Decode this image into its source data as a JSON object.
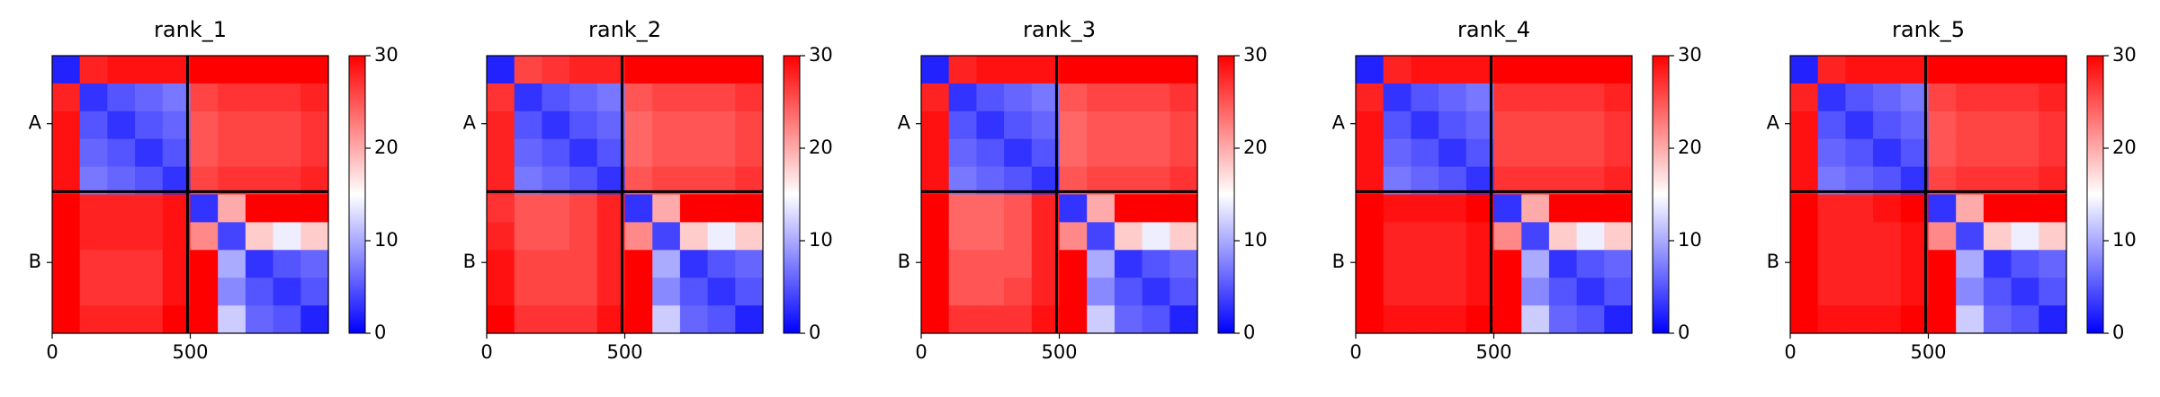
{
  "chart_data": [
    {
      "type": "heatmap",
      "title": "rank_1",
      "xlim": [
        0,
        1000
      ],
      "ylim": [
        1000,
        0
      ],
      "xticks": [
        0,
        500
      ],
      "yticks": [
        {
          "value": 245,
          "label": "A"
        },
        {
          "value": 745,
          "label": "B"
        }
      ],
      "chain_boundary": 490,
      "clim": [
        0,
        30
      ],
      "cticks": [
        0,
        10,
        20,
        30
      ],
      "cmap_colors": [
        "#0000ff",
        "#ffffff",
        "#ff0000"
      ],
      "values": [
        [
          2,
          28,
          29,
          29,
          29,
          30,
          30,
          30,
          30,
          30
        ],
        [
          28,
          3,
          5,
          6,
          7,
          26,
          27,
          27,
          27,
          28
        ],
        [
          29,
          5,
          3,
          5,
          6,
          25,
          26,
          26,
          26,
          27
        ],
        [
          29,
          6,
          5,
          3,
          5,
          25,
          26,
          26,
          26,
          27
        ],
        [
          29,
          7,
          6,
          5,
          3,
          26,
          27,
          27,
          27,
          28
        ],
        [
          30,
          28,
          28,
          28,
          29,
          3,
          20,
          30,
          30,
          30
        ],
        [
          30,
          28,
          28,
          28,
          29,
          22,
          4,
          18,
          14,
          18
        ],
        [
          30,
          27,
          27,
          27,
          29,
          30,
          10,
          3,
          5,
          6
        ],
        [
          30,
          27,
          27,
          27,
          29,
          30,
          8,
          5,
          3,
          5
        ],
        [
          30,
          28,
          28,
          28,
          30,
          30,
          12,
          6,
          5,
          2
        ]
      ]
    },
    {
      "type": "heatmap",
      "title": "rank_2",
      "xlim": [
        0,
        1000
      ],
      "ylim": [
        1000,
        0
      ],
      "xticks": [
        0,
        500
      ],
      "yticks": [
        {
          "value": 245,
          "label": "A"
        },
        {
          "value": 745,
          "label": "B"
        }
      ],
      "chain_boundary": 490,
      "clim": [
        0,
        30
      ],
      "cticks": [
        0,
        10,
        20,
        30
      ],
      "cmap_colors": [
        "#0000ff",
        "#ffffff",
        "#ff0000"
      ],
      "values": [
        [
          2,
          26,
          27,
          28,
          28,
          30,
          30,
          30,
          30,
          30
        ],
        [
          27,
          3,
          5,
          6,
          7,
          25,
          26,
          26,
          26,
          27
        ],
        [
          28,
          5,
          3,
          5,
          6,
          24,
          25,
          25,
          25,
          26
        ],
        [
          28,
          6,
          5,
          3,
          5,
          24,
          25,
          25,
          25,
          26
        ],
        [
          28,
          7,
          6,
          5,
          3,
          25,
          26,
          26,
          26,
          27
        ],
        [
          27,
          25,
          25,
          26,
          28,
          3,
          20,
          30,
          30,
          30
        ],
        [
          28,
          25,
          25,
          26,
          28,
          22,
          4,
          18,
          14,
          18
        ],
        [
          29,
          26,
          26,
          26,
          28,
          30,
          10,
          3,
          5,
          6
        ],
        [
          29,
          26,
          26,
          26,
          28,
          30,
          8,
          5,
          3,
          5
        ],
        [
          30,
          27,
          27,
          27,
          29,
          30,
          12,
          6,
          5,
          2
        ]
      ]
    },
    {
      "type": "heatmap",
      "title": "rank_3",
      "xlim": [
        0,
        1000
      ],
      "ylim": [
        1000,
        0
      ],
      "xticks": [
        0,
        500
      ],
      "yticks": [
        {
          "value": 245,
          "label": "A"
        },
        {
          "value": 745,
          "label": "B"
        }
      ],
      "chain_boundary": 490,
      "clim": [
        0,
        30
      ],
      "cticks": [
        0,
        10,
        20,
        30
      ],
      "cmap_colors": [
        "#0000ff",
        "#ffffff",
        "#ff0000"
      ],
      "values": [
        [
          2,
          28,
          29,
          29,
          29,
          30,
          30,
          30,
          30,
          30
        ],
        [
          28,
          3,
          5,
          6,
          7,
          25,
          26,
          26,
          26,
          27
        ],
        [
          29,
          5,
          3,
          5,
          6,
          24,
          25,
          25,
          25,
          26
        ],
        [
          29,
          6,
          5,
          3,
          5,
          24,
          25,
          25,
          25,
          26
        ],
        [
          29,
          7,
          6,
          5,
          3,
          25,
          26,
          26,
          26,
          27
        ],
        [
          30,
          24,
          24,
          25,
          28,
          3,
          20,
          30,
          30,
          30
        ],
        [
          30,
          24,
          24,
          25,
          28,
          22,
          4,
          18,
          14,
          18
        ],
        [
          30,
          25,
          25,
          25,
          28,
          30,
          10,
          3,
          5,
          6
        ],
        [
          30,
          25,
          25,
          26,
          28,
          30,
          8,
          5,
          3,
          5
        ],
        [
          30,
          27,
          27,
          27,
          29,
          30,
          12,
          6,
          5,
          2
        ]
      ]
    },
    {
      "type": "heatmap",
      "title": "rank_4",
      "xlim": [
        0,
        1000
      ],
      "ylim": [
        1000,
        0
      ],
      "xticks": [
        0,
        500
      ],
      "yticks": [
        {
          "value": 245,
          "label": "A"
        },
        {
          "value": 745,
          "label": "B"
        }
      ],
      "chain_boundary": 490,
      "clim": [
        0,
        30
      ],
      "cticks": [
        0,
        10,
        20,
        30
      ],
      "cmap_colors": [
        "#0000ff",
        "#ffffff",
        "#ff0000"
      ],
      "values": [
        [
          2,
          28,
          29,
          29,
          29,
          30,
          30,
          30,
          30,
          30
        ],
        [
          28,
          3,
          5,
          6,
          7,
          27,
          27,
          27,
          27,
          28
        ],
        [
          29,
          5,
          3,
          5,
          6,
          26,
          26,
          26,
          26,
          27
        ],
        [
          29,
          6,
          5,
          3,
          5,
          26,
          26,
          26,
          26,
          27
        ],
        [
          29,
          7,
          6,
          5,
          3,
          27,
          27,
          27,
          27,
          28
        ],
        [
          30,
          29,
          29,
          29,
          30,
          3,
          20,
          30,
          30,
          30
        ],
        [
          30,
          28,
          28,
          28,
          29,
          22,
          4,
          18,
          14,
          18
        ],
        [
          30,
          28,
          28,
          28,
          29,
          30,
          10,
          3,
          5,
          6
        ],
        [
          30,
          28,
          28,
          28,
          29,
          30,
          8,
          5,
          3,
          5
        ],
        [
          30,
          29,
          29,
          29,
          30,
          30,
          12,
          6,
          5,
          2
        ]
      ]
    },
    {
      "type": "heatmap",
      "title": "rank_5",
      "xlim": [
        0,
        1000
      ],
      "ylim": [
        1000,
        0
      ],
      "xticks": [
        0,
        500
      ],
      "yticks": [
        {
          "value": 245,
          "label": "A"
        },
        {
          "value": 745,
          "label": "B"
        }
      ],
      "chain_boundary": 490,
      "clim": [
        0,
        30
      ],
      "cticks": [
        0,
        10,
        20,
        30
      ],
      "cmap_colors": [
        "#0000ff",
        "#ffffff",
        "#ff0000"
      ],
      "values": [
        [
          2,
          28,
          29,
          29,
          29,
          30,
          30,
          30,
          30,
          30
        ],
        [
          28,
          3,
          5,
          6,
          7,
          26,
          27,
          27,
          27,
          28
        ],
        [
          29,
          5,
          3,
          5,
          6,
          25,
          26,
          26,
          26,
          27
        ],
        [
          29,
          6,
          5,
          3,
          5,
          25,
          26,
          26,
          26,
          27
        ],
        [
          29,
          7,
          6,
          5,
          3,
          26,
          27,
          27,
          27,
          28
        ],
        [
          30,
          28,
          28,
          29,
          30,
          3,
          20,
          30,
          30,
          30
        ],
        [
          30,
          28,
          28,
          28,
          29,
          22,
          4,
          18,
          14,
          18
        ],
        [
          30,
          28,
          28,
          28,
          29,
          30,
          10,
          3,
          5,
          6
        ],
        [
          30,
          28,
          28,
          28,
          29,
          30,
          8,
          5,
          3,
          5
        ],
        [
          30,
          29,
          29,
          29,
          30,
          30,
          12,
          6,
          5,
          2
        ]
      ]
    }
  ]
}
